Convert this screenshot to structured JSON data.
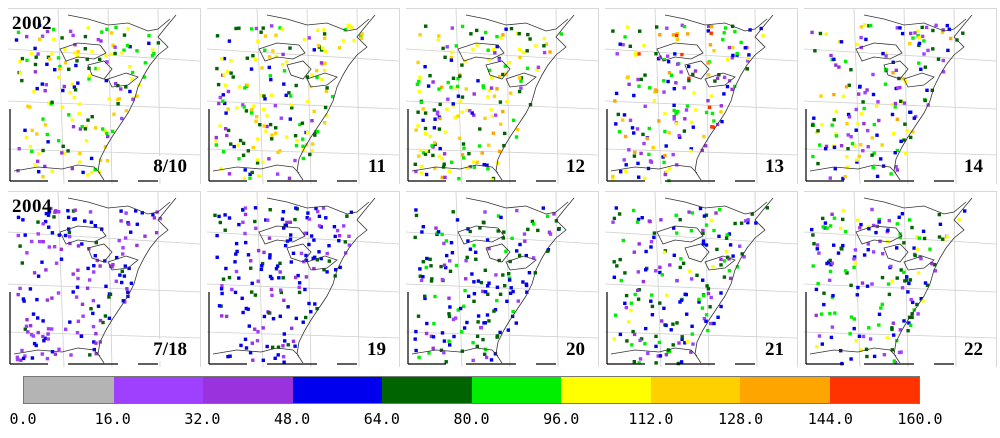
{
  "rows": [
    {
      "year_label": "2002",
      "panels": [
        {
          "day_label": "8/10",
          "palette_weights": [
            0,
            1,
            1,
            2,
            3,
            3,
            5,
            2,
            0,
            0
          ]
        },
        {
          "day_label": "11",
          "palette_weights": [
            0,
            1,
            1,
            2,
            4,
            3,
            5,
            2,
            0,
            0
          ]
        },
        {
          "day_label": "12",
          "palette_weights": [
            0,
            1,
            1,
            2,
            4,
            4,
            4,
            2,
            1,
            0
          ]
        },
        {
          "day_label": "13",
          "palette_weights": [
            0,
            3,
            2,
            4,
            2,
            2,
            3,
            2,
            2,
            1
          ]
        },
        {
          "day_label": "14",
          "palette_weights": [
            0,
            3,
            2,
            4,
            3,
            3,
            3,
            2,
            1,
            0
          ]
        }
      ]
    },
    {
      "year_label": "2004",
      "panels": [
        {
          "day_label": "7/18",
          "palette_weights": [
            0,
            3,
            3,
            5,
            1,
            0,
            0,
            0,
            0,
            0
          ]
        },
        {
          "day_label": "19",
          "palette_weights": [
            0,
            2,
            2,
            6,
            2,
            0,
            0,
            0,
            0,
            0
          ]
        },
        {
          "day_label": "20",
          "palette_weights": [
            0,
            1,
            1,
            5,
            4,
            2,
            0,
            0,
            0,
            0
          ]
        },
        {
          "day_label": "21",
          "palette_weights": [
            0,
            2,
            1,
            4,
            4,
            3,
            1,
            0,
            0,
            0
          ]
        },
        {
          "day_label": "22",
          "palette_weights": [
            0,
            2,
            1,
            4,
            3,
            3,
            2,
            0,
            0,
            0
          ]
        }
      ]
    }
  ],
  "colorbar": {
    "colors": [
      "#b4b4b4",
      "#a040ff",
      "#9a33dd",
      "#0000ee",
      "#006400",
      "#00ee00",
      "#ffff00",
      "#ffd000",
      "#ffa500",
      "#ff3300"
    ],
    "tick_labels": [
      "0.0",
      "16.0",
      "32.0",
      "48.0",
      "64.0",
      "80.0",
      "96.0",
      "112.0",
      "128.0",
      "144.0",
      "160.0"
    ]
  }
}
